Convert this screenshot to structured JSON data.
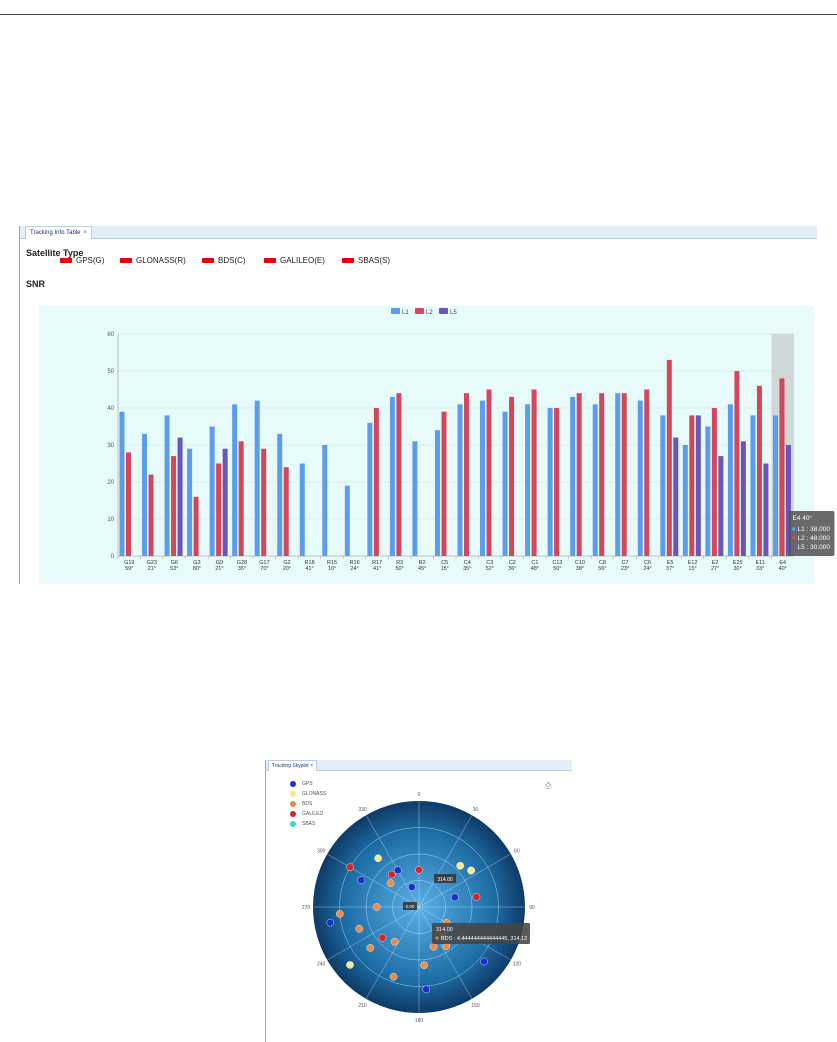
{
  "tracking_table": {
    "tab_label": "Tracking Info.Table",
    "tab_close": "×",
    "satellite_type_title": "Satellite Type",
    "satellite_types": [
      "GPS(G)",
      "GLONASS(R)",
      "BDS(C)",
      "GALILEO(E)",
      "SBAS(S)"
    ],
    "satellite_type_color": "#e8000d",
    "snr_title": "SNR"
  },
  "chart_data": {
    "type": "bar",
    "ylim": [
      0,
      60
    ],
    "yticks": [
      0,
      10,
      20,
      30,
      40,
      50,
      60
    ],
    "grid": true,
    "legend_position": "top-center",
    "categories": [
      "G19",
      "G23",
      "G6",
      "G3",
      "G9",
      "G28",
      "G17",
      "G2",
      "R18",
      "R15",
      "R16",
      "R17",
      "R3",
      "R2",
      "C5",
      "C4",
      "C3",
      "C2",
      "C1",
      "C13",
      "C10",
      "C8",
      "C7",
      "C6",
      "E5",
      "E12",
      "E2",
      "E25",
      "E11",
      "E4"
    ],
    "elevations": [
      "59°",
      "21°",
      "53°",
      "80°",
      "21°",
      "35°",
      "70°",
      "20°",
      "41°",
      "10°",
      "24°",
      "41°",
      "50°",
      "45°",
      "15°",
      "35°",
      "52°",
      "36°",
      "48°",
      "50°",
      "38°",
      "56°",
      "23°",
      "24°",
      "37°",
      "15°",
      "27°",
      "30°",
      "33°",
      "40°"
    ],
    "series": [
      {
        "name": "L1",
        "color": "#5b9cec",
        "values": [
          39,
          33,
          38,
          29,
          35,
          41,
          42,
          33,
          25,
          30,
          19,
          36,
          43,
          31,
          34,
          41,
          42,
          39,
          41,
          40,
          43,
          41,
          44,
          42,
          38,
          30,
          35,
          41,
          38,
          38
        ]
      },
      {
        "name": "L2",
        "color": "#d6465b",
        "values": [
          28,
          22,
          27,
          16,
          25,
          31,
          29,
          24,
          null,
          null,
          null,
          40,
          44,
          null,
          39,
          44,
          45,
          43,
          45,
          40,
          44,
          44,
          44,
          45,
          53,
          38,
          40,
          50,
          46,
          48
        ]
      },
      {
        "name": "L5",
        "color": "#6a55b8",
        "values": [
          null,
          null,
          32,
          null,
          29,
          null,
          null,
          null,
          null,
          null,
          null,
          null,
          null,
          null,
          null,
          null,
          null,
          null,
          null,
          null,
          null,
          null,
          null,
          null,
          32,
          38,
          27,
          31,
          25,
          30
        ]
      }
    ],
    "tooltip": {
      "title": "E4 40°",
      "lines": [
        "L1 : 38.000",
        "L2 : 48.000",
        "L5 : 30.000"
      ],
      "category": "E4"
    }
  },
  "skyplot": {
    "tab_label": "Tracking Skyplot",
    "tab_close": "×",
    "legend": [
      {
        "label": "GPS",
        "color": "#1a2fd0"
      },
      {
        "label": "GLONASS",
        "color": "#f2ec8a"
      },
      {
        "label": "BDS",
        "color": "#ee8a4a"
      },
      {
        "label": "GALILEO",
        "color": "#d8202a"
      },
      {
        "label": "SBAS",
        "color": "#40d8b4"
      }
    ],
    "azimuth_labels": [
      "0",
      "30",
      "60",
      "90",
      "120",
      "150",
      "180",
      "210",
      "240",
      "270",
      "300",
      "330"
    ],
    "tooltip_top": "314.00",
    "tooltip_center": "0.00",
    "tooltip_bds_header": "314.00",
    "tooltip_bds_text": "BDS : 4.444444444444445, 314.12"
  }
}
